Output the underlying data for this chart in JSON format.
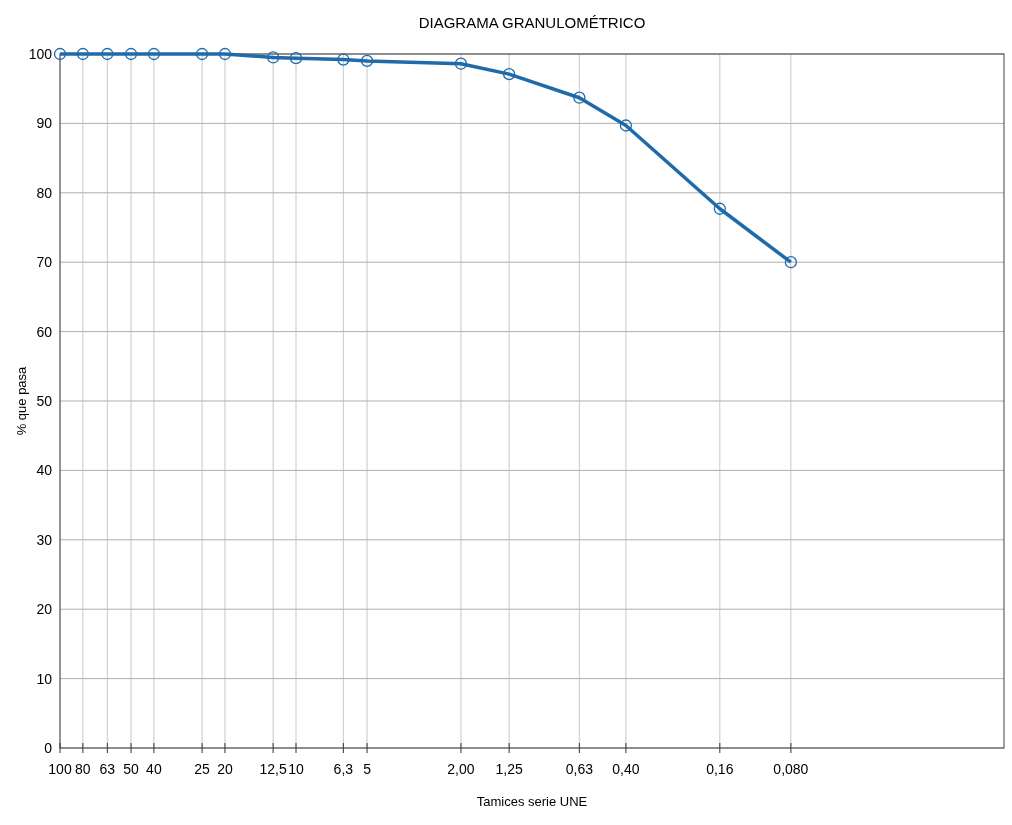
{
  "chart_data": {
    "type": "line",
    "title": "DIAGRAMA GRANULOMÉTRICO",
    "xlabel": "Tamices serie UNE",
    "ylabel": "% que pasa",
    "x": [
      100,
      80,
      63,
      50,
      40,
      25,
      20,
      12.5,
      10,
      6.3,
      5,
      2,
      1.25,
      0.63,
      0.4,
      0.16,
      0.08
    ],
    "series": [
      {
        "color": "#1f6aa8",
        "values": [
          100,
          100,
          100,
          100,
          100,
          100,
          100,
          99.5,
          99.4,
          99.2,
          99,
          98.6,
          97.1,
          93.7,
          89.7,
          77.7,
          70
        ]
      }
    ],
    "log": "x",
    "xlim": [
      100,
      0.01
    ],
    "xticks": [
      100,
      80,
      63,
      50,
      40,
      25,
      20,
      {
        "value": 12.5,
        "label": "12,5"
      },
      10,
      {
        "value": 6.3,
        "label": "6,3"
      },
      5,
      {
        "value": 2,
        "label": "2,00"
      },
      {
        "value": 1.25,
        "label": "1,25"
      },
      {
        "value": 0.63,
        "label": "0,63"
      },
      {
        "value": 0.4,
        "label": "0,40"
      },
      {
        "value": 0.16,
        "label": "0,16"
      },
      {
        "value": 0.08,
        "label": "0,080"
      }
    ],
    "ylim": [
      0,
      100
    ],
    "yticks": [
      0,
      10,
      20,
      30,
      40,
      50,
      60,
      70,
      80,
      90,
      100
    ],
    "grid": true,
    "marker": "circle",
    "line_style": "solid"
  }
}
